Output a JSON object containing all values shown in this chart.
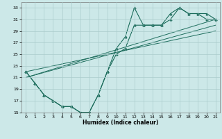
{
  "title": "",
  "xlabel": "Humidex (Indice chaleur)",
  "ylabel": "",
  "bg_color": "#cce8e8",
  "grid_color": "#aacccc",
  "line_color": "#1a6b5a",
  "xlim": [
    -0.5,
    21.5
  ],
  "ylim": [
    15,
    34
  ],
  "xticks": [
    0,
    1,
    2,
    3,
    4,
    5,
    6,
    7,
    8,
    9,
    10,
    11,
    12,
    13,
    14,
    15,
    16,
    17,
    18,
    19,
    20,
    21
  ],
  "yticks": [
    15,
    17,
    19,
    21,
    23,
    25,
    27,
    29,
    31,
    33
  ],
  "line1_x": [
    0,
    1,
    2,
    3,
    4,
    5,
    6,
    7,
    8,
    9,
    10,
    11,
    12,
    13,
    14,
    15,
    16,
    17,
    18,
    19,
    20,
    21
  ],
  "line1_y": [
    22,
    20,
    18,
    17,
    16,
    16,
    15,
    15,
    18,
    22,
    26,
    28,
    33,
    30,
    30,
    30,
    32,
    33,
    32,
    32,
    31,
    31
  ],
  "line2_x": [
    0,
    1,
    2,
    3,
    4,
    5,
    6,
    7,
    8,
    9,
    10,
    11,
    12,
    13,
    14,
    15,
    16,
    17,
    18,
    19,
    20,
    21
  ],
  "line2_y": [
    22,
    20,
    18,
    17,
    16,
    16,
    15,
    15,
    18,
    22,
    25,
    26,
    30,
    30,
    30,
    30,
    31,
    33,
    32,
    32,
    32,
    31
  ],
  "line3_x": [
    0,
    21
  ],
  "line3_y": [
    21,
    30
  ],
  "line4_x": [
    0,
    21
  ],
  "line4_y": [
    21,
    31
  ],
  "line5_x": [
    0,
    21
  ],
  "line5_y": [
    22,
    29
  ]
}
